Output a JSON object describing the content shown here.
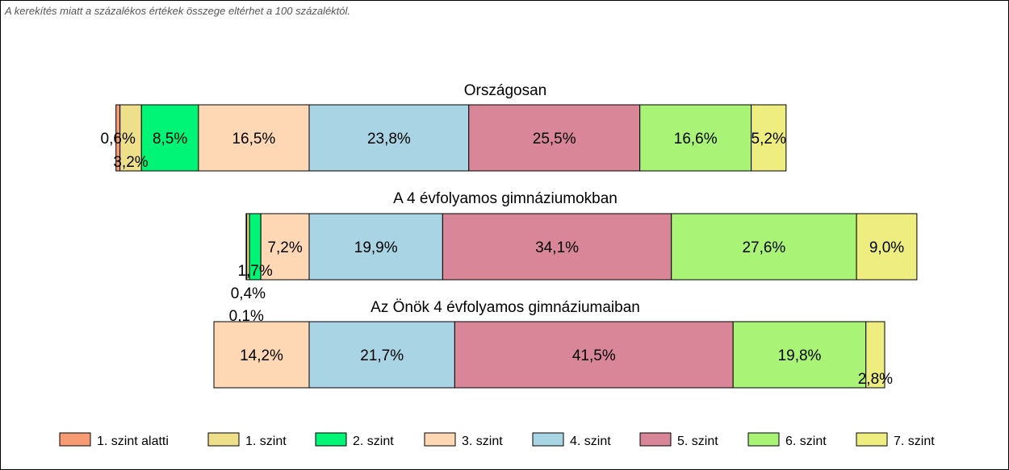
{
  "note": "A kerekítés miatt a  százalékos értékek összege eltérhet a 100 százaléktól.",
  "chart_data": {
    "type": "bar",
    "orientation": "horizontal-stacked",
    "categories": [
      "1. szint alatti",
      "1. szint",
      "2. szint",
      "3. szint",
      "4. szint",
      "5. szint",
      "6. szint",
      "7. szint"
    ],
    "colors": [
      "#f79b74",
      "#eee08a",
      "#00f475",
      "#fed8b4",
      "#a8d4e4",
      "#d98698",
      "#a9f376",
      "#eeee80"
    ],
    "groups": [
      {
        "title": "Országosan",
        "values": [
          0.6,
          3.2,
          8.5,
          16.5,
          23.8,
          25.5,
          16.6,
          5.2
        ],
        "labels": [
          "0,6%",
          "3,2%",
          "8,5%",
          "16,5%",
          "23,8%",
          "25,5%",
          "16,6%",
          "5,2%"
        ]
      },
      {
        "title": "A 4 évfolyamos gimnáziumokban",
        "values": [
          0.1,
          0.4,
          1.7,
          7.2,
          19.9,
          34.1,
          27.6,
          9.0
        ],
        "labels": [
          "0,1%",
          "0,4%",
          "1,7%",
          "7,2%",
          "19,9%",
          "34,1%",
          "27,6%",
          "9,0%"
        ]
      },
      {
        "title": "Az Önök 4 évfolyamos gimnáziumaiban",
        "values": [
          0,
          0,
          0,
          14.2,
          21.7,
          41.5,
          19.8,
          2.8
        ],
        "labels": [
          "",
          "",
          "",
          "14,2%",
          "21,7%",
          "41,5%",
          "19,8%",
          "2,8%"
        ]
      }
    ],
    "legend": [
      "1. szint alatti",
      "1. szint",
      "2. szint",
      "3. szint",
      "4. szint",
      "5. szint",
      "6. szint",
      "7. szint"
    ],
    "legend_position": "bottom"
  }
}
